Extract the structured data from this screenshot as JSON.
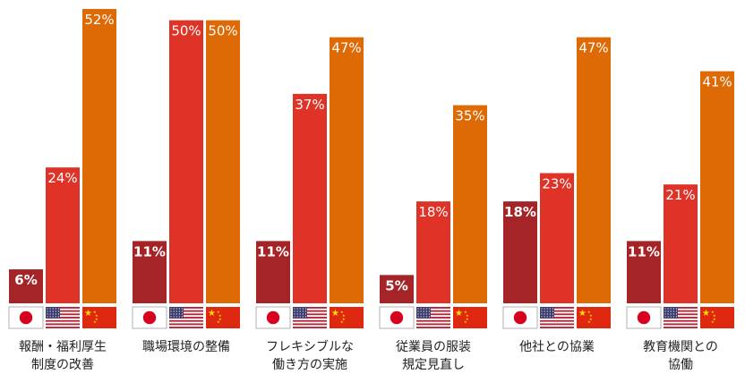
{
  "chart_data": {
    "type": "bar",
    "categories": [
      [
        "報酬・福利厚生",
        "制度の改善"
      ],
      [
        "職場環境の整備"
      ],
      [
        "フレキシブルな",
        "働き方の実施"
      ],
      [
        "従業員の服装",
        "規定見直し"
      ],
      [
        "他社との協業"
      ],
      [
        "教育機関との",
        "協働"
      ]
    ],
    "series": [
      {
        "country": "Japan",
        "color": "#a52428",
        "labels": [
          "6%",
          "11%",
          "11%",
          "5%",
          "18%",
          "11%"
        ],
        "values": [
          6,
          11,
          11,
          5,
          18,
          11
        ],
        "bold": true
      },
      {
        "country": "United States",
        "color": "#df3327",
        "labels": [
          "24%",
          "50%",
          "37%",
          "18%",
          "23%",
          "21%"
        ],
        "values": [
          24,
          50,
          37,
          18,
          23,
          21
        ],
        "bold": false
      },
      {
        "country": "China",
        "color": "#de6a05",
        "labels": [
          "52%",
          "50%",
          "47%",
          "35%",
          "47%",
          "41%"
        ],
        "values": [
          52,
          50,
          47,
          35,
          47,
          41
        ],
        "bold": false
      }
    ],
    "legend_flags": [
      "japan-flag-icon",
      "us-flag-icon",
      "china-flag-icon"
    ],
    "ylim": [
      0,
      52
    ],
    "grid": false
  }
}
